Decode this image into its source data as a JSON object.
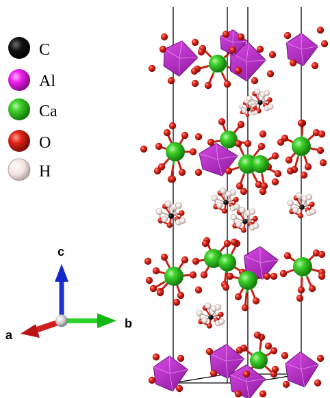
{
  "legend": {
    "items": [
      {
        "symbol": "C",
        "label": "C",
        "color": "#000000"
      },
      {
        "symbol": "Al",
        "label": "Al",
        "color": "#e61ee6"
      },
      {
        "symbol": "Ca",
        "label": "Ca",
        "color": "#3cd21e"
      },
      {
        "symbol": "O",
        "label": "O",
        "color": "#e6231e"
      },
      {
        "symbol": "H",
        "label": "H",
        "color": "#f5d7d2"
      }
    ]
  },
  "axes": {
    "c": {
      "label": "c",
      "color": "#1428c8"
    },
    "a": {
      "label": "a",
      "color": "#c81414"
    },
    "b": {
      "label": "b",
      "color": "#14c814"
    }
  },
  "colors": {
    "octahedron": "#b428c8",
    "octahedron_light": "#d23ce6",
    "ca": "#28c828",
    "o": "#d21e14",
    "bond_green": "#32c832",
    "cell_edge": "#000000"
  }
}
